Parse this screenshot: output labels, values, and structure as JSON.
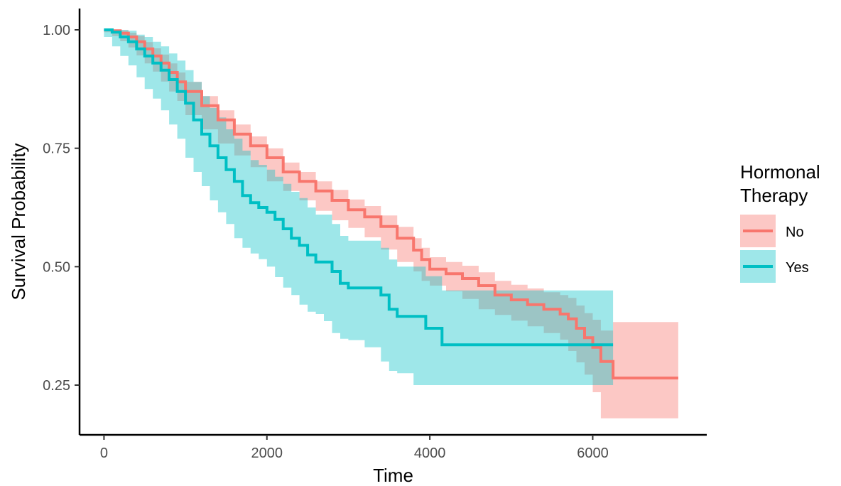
{
  "chart_data": {
    "type": "line",
    "subtype": "kaplan-meier-step",
    "xlabel": "Time",
    "ylabel": "Survival Probability",
    "xlim": [
      -300,
      7400
    ],
    "ylim": [
      0.145,
      1.045
    ],
    "xticks": [
      0,
      2000,
      4000,
      6000
    ],
    "xtick_labels": [
      "0",
      "2000",
      "4000",
      "6000"
    ],
    "yticks": [
      0.25,
      0.5,
      0.75,
      1.0
    ],
    "ytick_labels": [
      "0.25",
      "0.50",
      "0.75",
      "1.00"
    ],
    "grid": false,
    "legend": {
      "title_lines": [
        "Hormonal",
        "Therapy"
      ],
      "position": "right",
      "entries": [
        "No",
        "Yes"
      ]
    },
    "series": [
      {
        "name": "No",
        "color": "#F8766D",
        "band_color": "#F8766D",
        "band_opacity": 0.4,
        "x": [
          0,
          100,
          200,
          300,
          400,
          500,
          600,
          700,
          800,
          900,
          1000,
          1200,
          1400,
          1600,
          1800,
          2000,
          2200,
          2400,
          2600,
          2800,
          3000,
          3200,
          3400,
          3600,
          3800,
          3900,
          4000,
          4200,
          4400,
          4600,
          4800,
          5000,
          5200,
          5400,
          5600,
          5700,
          5800,
          5900,
          6000,
          6100,
          6250,
          6500,
          7050
        ],
        "y": [
          1.0,
          0.998,
          0.993,
          0.985,
          0.975,
          0.96,
          0.945,
          0.93,
          0.91,
          0.89,
          0.87,
          0.84,
          0.81,
          0.78,
          0.755,
          0.73,
          0.7,
          0.68,
          0.66,
          0.64,
          0.62,
          0.605,
          0.585,
          0.56,
          0.535,
          0.515,
          0.495,
          0.485,
          0.475,
          0.46,
          0.44,
          0.43,
          0.42,
          0.41,
          0.4,
          0.39,
          0.37,
          0.35,
          0.33,
          0.3,
          0.265,
          0.265,
          0.265
        ],
        "lower": [
          1.0,
          0.995,
          0.987,
          0.976,
          0.963,
          0.946,
          0.929,
          0.912,
          0.891,
          0.87,
          0.85,
          0.82,
          0.79,
          0.76,
          0.735,
          0.71,
          0.68,
          0.66,
          0.64,
          0.618,
          0.598,
          0.582,
          0.562,
          0.536,
          0.51,
          0.49,
          0.47,
          0.46,
          0.448,
          0.432,
          0.41,
          0.398,
          0.386,
          0.374,
          0.36,
          0.346,
          0.322,
          0.298,
          0.272,
          0.235,
          0.18,
          0.18,
          0.18
        ],
        "upper": [
          1.0,
          1.0,
          0.999,
          0.994,
          0.987,
          0.974,
          0.961,
          0.948,
          0.929,
          0.91,
          0.89,
          0.86,
          0.83,
          0.8,
          0.775,
          0.75,
          0.72,
          0.7,
          0.68,
          0.662,
          0.642,
          0.628,
          0.608,
          0.584,
          0.56,
          0.54,
          0.52,
          0.51,
          0.502,
          0.488,
          0.47,
          0.462,
          0.454,
          0.446,
          0.44,
          0.434,
          0.418,
          0.402,
          0.388,
          0.365,
          0.383,
          0.383,
          0.383
        ]
      },
      {
        "name": "Yes",
        "color": "#00BFC4",
        "band_color": "#00BFC4",
        "band_opacity": 0.38,
        "x": [
          0,
          100,
          200,
          300,
          400,
          500,
          600,
          700,
          800,
          900,
          1000,
          1100,
          1200,
          1300,
          1400,
          1500,
          1600,
          1700,
          1800,
          1900,
          2000,
          2100,
          2200,
          2300,
          2400,
          2500,
          2600,
          2700,
          2800,
          2900,
          3000,
          3200,
          3400,
          3500,
          3600,
          3800,
          3950,
          4150,
          4500,
          5000,
          5500,
          6000,
          6250
        ],
        "y": [
          1.0,
          0.995,
          0.985,
          0.975,
          0.96,
          0.945,
          0.93,
          0.915,
          0.895,
          0.87,
          0.845,
          0.81,
          0.78,
          0.755,
          0.73,
          0.705,
          0.68,
          0.65,
          0.635,
          0.625,
          0.615,
          0.6,
          0.58,
          0.56,
          0.545,
          0.525,
          0.51,
          0.51,
          0.49,
          0.465,
          0.455,
          0.455,
          0.44,
          0.41,
          0.395,
          0.395,
          0.37,
          0.335,
          0.335,
          0.335,
          0.335,
          0.335,
          0.335
        ],
        "lower": [
          1.0,
          0.985,
          0.965,
          0.945,
          0.925,
          0.9,
          0.875,
          0.855,
          0.83,
          0.8,
          0.77,
          0.73,
          0.7,
          0.67,
          0.64,
          0.615,
          0.59,
          0.56,
          0.54,
          0.528,
          0.516,
          0.5,
          0.478,
          0.456,
          0.44,
          0.42,
          0.405,
          0.4,
          0.385,
          0.36,
          0.348,
          0.345,
          0.33,
          0.3,
          0.28,
          0.275,
          0.25,
          0.25,
          0.25,
          0.25,
          0.25,
          0.25,
          0.25
        ],
        "upper": [
          1.0,
          1.0,
          1.0,
          0.998,
          0.99,
          0.985,
          0.975,
          0.965,
          0.95,
          0.935,
          0.915,
          0.89,
          0.86,
          0.835,
          0.815,
          0.79,
          0.77,
          0.745,
          0.725,
          0.715,
          0.705,
          0.69,
          0.675,
          0.658,
          0.645,
          0.625,
          0.61,
          0.61,
          0.59,
          0.565,
          0.555,
          0.555,
          0.54,
          0.515,
          0.5,
          0.5,
          0.48,
          0.45,
          0.45,
          0.45,
          0.45,
          0.45,
          0.45
        ]
      }
    ]
  }
}
